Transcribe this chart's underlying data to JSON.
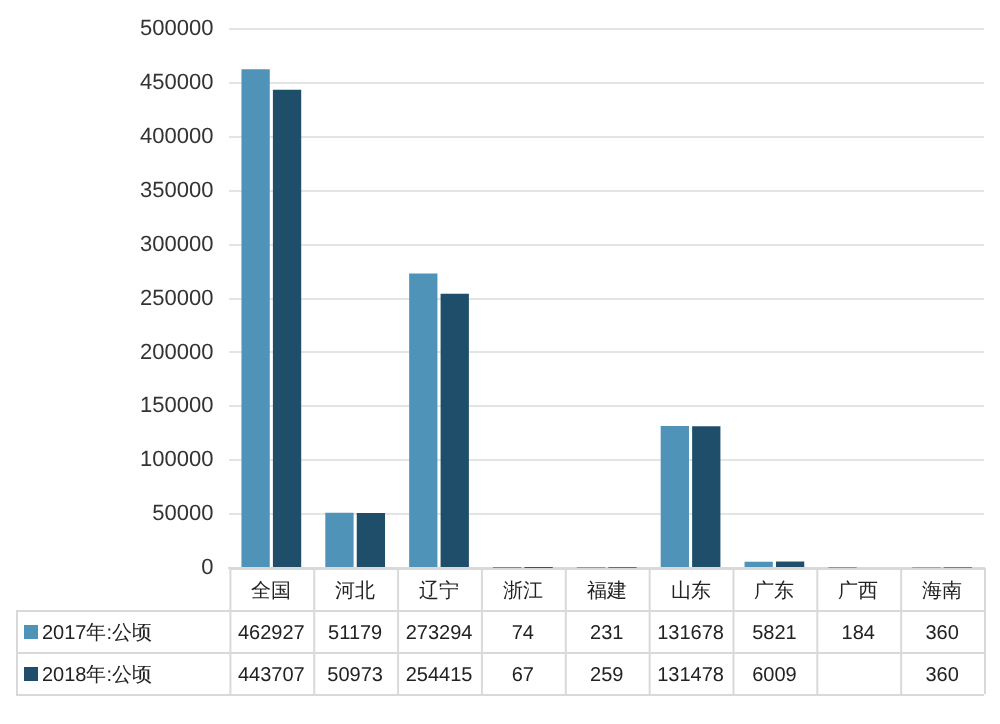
{
  "chart_data": {
    "type": "bar",
    "categories": [
      "全国",
      "河北",
      "辽宁",
      "浙江",
      "福建",
      "山东",
      "广东",
      "广西",
      "海南"
    ],
    "series": [
      {
        "name": "2017年:公顷",
        "color": "#4f93b8",
        "values": [
          462927,
          51179,
          273294,
          74,
          231,
          131678,
          5821,
          184,
          360
        ]
      },
      {
        "name": "2018年:公顷",
        "color": "#1f4e6b",
        "values": [
          443707,
          50973,
          254415,
          67,
          259,
          131478,
          6009,
          null,
          360
        ]
      }
    ],
    "ylim": [
      0,
      500000
    ],
    "yticks": [
      0,
      50000,
      100000,
      150000,
      200000,
      250000,
      300000,
      350000,
      400000,
      450000,
      500000
    ],
    "grid": "y",
    "legend": "bottom",
    "data_labels": true
  }
}
